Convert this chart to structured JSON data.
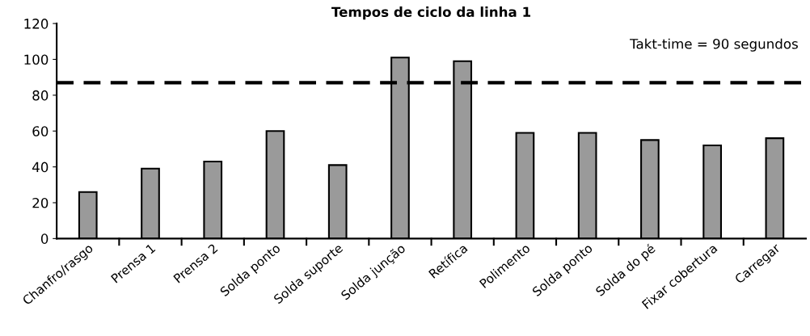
{
  "chart_data": {
    "type": "bar",
    "title": "Tempos de ciclo da linha 1",
    "categories": [
      "Chanfro/rasgo",
      "Prensa 1",
      "Prensa 2",
      "Solda ponto",
      "Solda suporte",
      "Solda junção",
      "Retífica",
      "Polimento",
      "Solda ponto",
      "Solda do pé",
      "Fixar cobertura",
      "Carregar"
    ],
    "values": [
      26,
      39,
      43,
      60,
      41,
      101,
      99,
      59,
      59,
      55,
      52,
      56
    ],
    "color": "#9a9a9a",
    "ylim": [
      0,
      120
    ],
    "yticks": [
      0,
      20,
      40,
      60,
      80,
      100,
      120
    ],
    "ref_lines": [
      {
        "axis": "y",
        "value": 87,
        "color": "#000000",
        "line_style": "dashed"
      }
    ],
    "annotations": [
      "Takt-time = 90 segundos"
    ],
    "grid": false,
    "legend": false
  }
}
